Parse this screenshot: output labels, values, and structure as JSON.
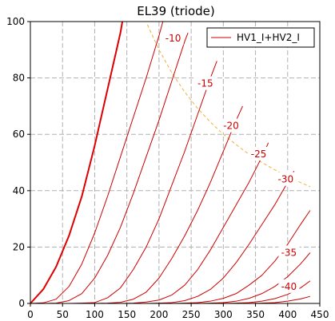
{
  "chart_data": {
    "type": "line",
    "title": "EL39  (triode)",
    "xlabel": "",
    "ylabel": "",
    "xlim": [
      0,
      450
    ],
    "ylim": [
      0,
      100
    ],
    "xticks": [
      0,
      50,
      100,
      150,
      200,
      250,
      300,
      350,
      400,
      450
    ],
    "yticks": [
      0,
      20,
      40,
      60,
      80,
      100
    ],
    "grid": true,
    "legend": {
      "placement": "top-right",
      "entries": [
        "HV1_I+HV2_I"
      ]
    },
    "colors": {
      "curves": "#cc0000",
      "bold_curve": "#dd0000",
      "dissipation": "#f0b040",
      "grid": "#b0b0b0"
    },
    "series": [
      {
        "label": "",
        "bold": true,
        "x": [
          0,
          20,
          40,
          60,
          80,
          100,
          120,
          140,
          143
        ],
        "y": [
          0,
          5,
          13,
          24,
          38,
          56,
          76,
          96,
          100
        ]
      },
      {
        "label": "",
        "bold": false,
        "x": [
          0,
          20,
          40,
          60,
          80,
          100,
          120,
          140,
          160,
          180,
          200,
          206
        ],
        "y": [
          0,
          0.2,
          1.5,
          6,
          14,
          25,
          38,
          52,
          66,
          80,
          95,
          100
        ]
      },
      {
        "label": "-10",
        "bold": false,
        "x": [
          20,
          40,
          60,
          80,
          100,
          120,
          140,
          160,
          180,
          200,
          220,
          240,
          245
        ],
        "y": [
          0,
          0.1,
          1,
          3.5,
          9,
          17,
          27,
          39,
          52,
          65,
          79,
          93,
          96
        ]
      },
      {
        "label": "-15",
        "bold": false,
        "x": [
          60,
          80,
          100,
          120,
          140,
          160,
          180,
          200,
          220,
          240,
          260,
          280,
          290
        ],
        "y": [
          0,
          0.1,
          0.3,
          2,
          5.5,
          12,
          20,
          30,
          42,
          54,
          67,
          80,
          86
        ]
      },
      {
        "label": "-20",
        "bold": false,
        "x": [
          100,
          120,
          140,
          160,
          180,
          200,
          220,
          240,
          260,
          280,
          300,
          320,
          330
        ],
        "y": [
          0,
          0.1,
          0.4,
          1.5,
          4,
          9,
          16,
          24,
          33,
          43,
          54,
          65,
          70
        ]
      },
      {
        "label": "-25",
        "bold": false,
        "x": [
          140,
          160,
          180,
          200,
          220,
          240,
          260,
          280,
          300,
          320,
          340,
          360,
          370
        ],
        "y": [
          0,
          0.1,
          0.5,
          1.2,
          3,
          6.5,
          12,
          19,
          27,
          35,
          43,
          52,
          57
        ]
      },
      {
        "label": "-30",
        "bold": false,
        "x": [
          180,
          200,
          220,
          240,
          260,
          280,
          300,
          320,
          340,
          360,
          380,
          400,
          410
        ],
        "y": [
          0,
          0.1,
          0.3,
          1,
          2.5,
          5,
          9,
          14.5,
          21,
          28,
          35,
          43,
          47
        ]
      },
      {
        "label": "-35",
        "bold": false,
        "x": [
          220,
          240,
          260,
          280,
          300,
          320,
          340,
          360,
          380,
          400,
          420,
          435
        ],
        "y": [
          0,
          0.1,
          0.3,
          0.8,
          1.8,
          3.5,
          6.5,
          10,
          15,
          21,
          28,
          33
        ]
      },
      {
        "label": "-40",
        "bold": false,
        "x": [
          260,
          280,
          300,
          320,
          340,
          360,
          380,
          400,
          420,
          435
        ],
        "y": [
          0,
          0.1,
          0.3,
          0.8,
          1.8,
          3.5,
          6,
          9.5,
          14,
          18
        ]
      },
      {
        "label": "",
        "bold": false,
        "x": [
          300,
          320,
          340,
          360,
          380,
          400,
          420,
          435
        ],
        "y": [
          0,
          0.1,
          0.3,
          0.8,
          1.7,
          3.2,
          5.5,
          8
        ]
      },
      {
        "label": "",
        "bold": false,
        "x": [
          340,
          360,
          380,
          400,
          420,
          435
        ],
        "y": [
          0,
          0.1,
          0.3,
          0.8,
          1.6,
          2.5
        ]
      }
    ],
    "dissipation_curve": {
      "x": [
        182,
        200,
        220,
        240,
        260,
        280,
        300,
        320,
        340,
        360,
        380,
        400,
        420,
        435
      ],
      "y": [
        98.9,
        90,
        81.8,
        75,
        69.2,
        64.3,
        60,
        56.3,
        52.9,
        50,
        47.4,
        45,
        42.9,
        41.4
      ]
    },
    "label_positions": [
      {
        "text": "-10",
        "x": 222,
        "y": 94
      },
      {
        "text": "-15",
        "x": 272,
        "y": 78
      },
      {
        "text": "-20",
        "x": 312,
        "y": 63
      },
      {
        "text": "-25",
        "x": 355,
        "y": 53
      },
      {
        "text": "-30",
        "x": 397,
        "y": 44
      },
      {
        "text": "-35",
        "x": 402,
        "y": 18
      },
      {
        "text": "-40",
        "x": 402,
        "y": 6
      }
    ]
  }
}
